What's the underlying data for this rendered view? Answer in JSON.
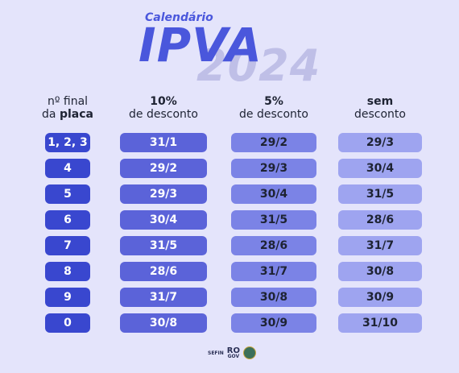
{
  "title": {
    "subtitle": "Calendário",
    "main": "IPVA",
    "year": "2024"
  },
  "headers": {
    "col0_line1": "nº final",
    "col0_line2_prefix": "da ",
    "col0_line2_bold": "placa",
    "col1_line1": "10%",
    "col1_line2": "de desconto",
    "col2_line1": "5%",
    "col2_line2": "de desconto",
    "col3_line1": "sem",
    "col3_line2": "desconto"
  },
  "rows": [
    {
      "placa": "1, 2, 3",
      "d10": "31/1",
      "d5": "29/2",
      "sem": "29/3"
    },
    {
      "placa": "4",
      "d10": "29/2",
      "d5": "29/3",
      "sem": "30/4"
    },
    {
      "placa": "5",
      "d10": "29/3",
      "d5": "30/4",
      "sem": "31/5"
    },
    {
      "placa": "6",
      "d10": "30/4",
      "d5": "31/5",
      "sem": "28/6"
    },
    {
      "placa": "7",
      "d10": "31/5",
      "d5": "28/6",
      "sem": "31/7"
    },
    {
      "placa": "8",
      "d10": "28/6",
      "d5": "31/7",
      "sem": "30/8"
    },
    {
      "placa": "9",
      "d10": "31/7",
      "d5": "30/8",
      "sem": "30/9"
    },
    {
      "placa": "0",
      "d10": "30/8",
      "d5": "30/9",
      "sem": "31/10"
    }
  ],
  "footer": {
    "sefin": "SEFIN",
    "ro": "RO",
    "gov": "GOV",
    "badge_icon": "state-seal-icon"
  },
  "colors": {
    "background": "#e4e4fb",
    "accent": "#4a57dc"
  }
}
